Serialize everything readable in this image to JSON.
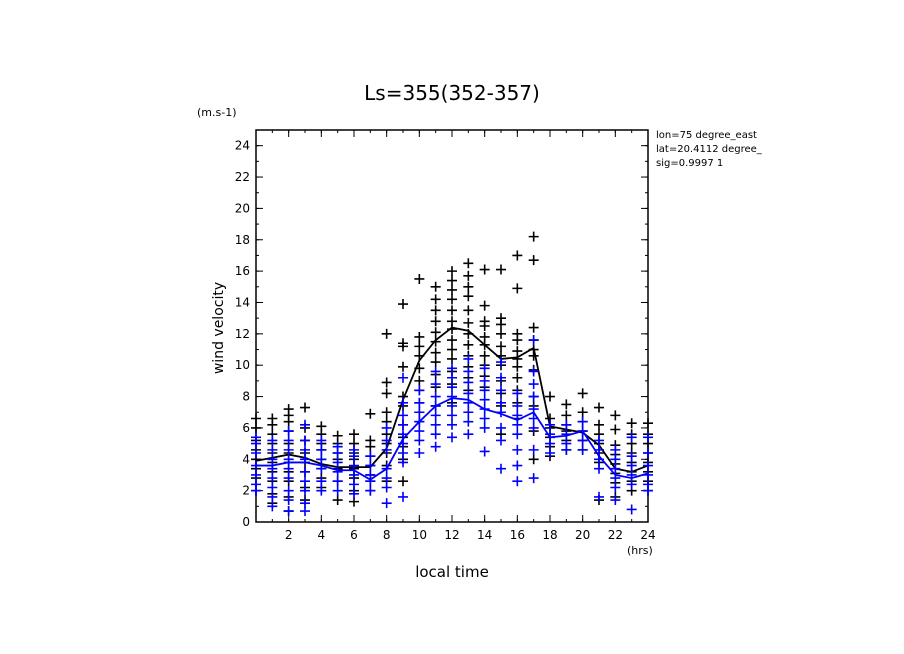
{
  "chart_data": {
    "type": "scatter",
    "title": "Ls=355(352-357)",
    "xlabel": "local time",
    "ylabel": "wind velocity",
    "x_unit": "(hrs)",
    "y_unit": "(m.s-1)",
    "xlim": [
      0,
      24
    ],
    "ylim": [
      0,
      25
    ],
    "x_ticks": [
      "2",
      "4",
      "6",
      "8",
      "10",
      "12",
      "14",
      "16",
      "18",
      "20",
      "22",
      "24"
    ],
    "y_ticks": [
      "0",
      "2",
      "4",
      "6",
      "8",
      "10",
      "12",
      "14",
      "16",
      "18",
      "20",
      "22",
      "24"
    ],
    "grid": false,
    "annotations": [
      "lon=75 degree_east",
      "lat=20.4112 degree_",
      "sig=0.9997 1"
    ],
    "colors": {
      "series_a": "#000000",
      "series_b": "#0000ff"
    },
    "series": [
      {
        "color": "#000000",
        "mean_x": [
          0,
          1,
          2,
          3,
          4,
          5,
          6,
          7,
          8,
          9,
          10,
          11,
          12,
          13,
          14,
          15,
          16,
          17,
          18,
          19,
          20,
          21,
          22,
          23,
          24
        ],
        "mean": [
          3.9,
          4.1,
          4.3,
          4.1,
          3.7,
          3.5,
          3.5,
          3.5,
          4.7,
          7.8,
          10.3,
          11.6,
          12.4,
          12.2,
          11.3,
          10.4,
          10.5,
          11.1,
          6.1,
          5.9,
          5.7,
          4.9,
          3.4,
          3.2,
          3.6
        ],
        "points": [
          [
            0,
            [
              6.6,
              6.0,
              5.2,
              4.6,
              4.0,
              3.4,
              2.8,
              2.0
            ]
          ],
          [
            1,
            [
              6.6,
              6.2,
              5.6,
              5.0,
              4.4,
              3.8,
              3.2,
              2.6,
              1.8,
              1.2
            ]
          ],
          [
            2,
            [
              7.2,
              6.8,
              6.4,
              5.8,
              5.0,
              4.4,
              3.8,
              3.2,
              2.6,
              1.6,
              0.7
            ]
          ],
          [
            3,
            [
              7.3,
              6.0,
              5.2,
              4.4,
              3.8,
              3.2,
              2.2,
              1.4
            ]
          ],
          [
            4,
            [
              6.1,
              5.6,
              5.0,
              4.6,
              4.0,
              3.4,
              2.8,
              2.2
            ]
          ],
          [
            5,
            [
              5.5,
              5.0,
              4.4,
              4.0,
              3.4,
              2.6,
              1.4
            ]
          ],
          [
            6,
            [
              5.6,
              5.0,
              4.4,
              4.0,
              3.4,
              2.8,
              2.0,
              1.3
            ]
          ],
          [
            7,
            [
              6.9,
              5.2,
              4.8,
              4.2,
              3.6,
              3.0,
              2.6,
              2.0
            ]
          ],
          [
            8,
            [
              12.0,
              8.9,
              8.2,
              7.0,
              6.4,
              5.6,
              5.0,
              4.4,
              3.6,
              2.6
            ]
          ],
          [
            9,
            [
              13.9,
              11.4,
              11.2,
              9.9,
              8.0,
              7.4,
              6.2,
              5.4,
              4.8,
              4.0,
              2.6
            ]
          ],
          [
            10,
            [
              15.5,
              11.8,
              11.2,
              10.6,
              9.8,
              9.0,
              8.4,
              7.6,
              7.0,
              6.4
            ]
          ],
          [
            11,
            [
              15.0,
              14.2,
              13.5,
              12.8,
              12.1,
              11.5,
              10.8,
              10.2,
              9.4,
              8.6,
              7.4
            ]
          ],
          [
            12,
            [
              16.0,
              15.4,
              14.8,
              14.2,
              13.5,
              12.8,
              12.3,
              11.6,
              11.0,
              10.4,
              9.6,
              8.8,
              7.6
            ]
          ],
          [
            13,
            [
              16.5,
              15.7,
              15.0,
              14.4,
              13.5,
              12.7,
              12.0,
              11.3,
              10.6,
              9.9,
              9.2,
              8.4
            ]
          ],
          [
            14,
            [
              16.1,
              13.8,
              12.8,
              12.5,
              11.8,
              11.3,
              10.6,
              10.0,
              9.3,
              8.6
            ]
          ],
          [
            15,
            [
              16.1,
              13.0,
              12.6,
              12.0,
              11.2,
              10.6,
              10.0,
              9.0,
              8.2,
              7.4,
              5.6
            ]
          ],
          [
            16,
            [
              17.0,
              14.9,
              12.0,
              11.6,
              10.9,
              10.4,
              9.9,
              9.2,
              8.4,
              7.6,
              6.6
            ]
          ],
          [
            17,
            [
              18.2,
              16.7,
              12.4,
              11.6,
              11.0,
              10.6,
              9.7,
              8.0,
              7.4,
              5.8,
              4.0
            ]
          ],
          [
            18,
            [
              8.0,
              6.6,
              6.0,
              5.4,
              4.8,
              4.2
            ]
          ],
          [
            19,
            [
              7.5,
              6.8,
              6.2,
              5.8,
              5.2,
              4.6
            ]
          ],
          [
            20,
            [
              8.2,
              7.0,
              6.4,
              5.8,
              5.2,
              4.6
            ]
          ],
          [
            21,
            [
              7.3,
              6.2,
              5.6,
              5.0,
              4.4,
              3.8,
              1.4
            ]
          ],
          [
            22,
            [
              6.8,
              5.9,
              4.9,
              4.3,
              3.7,
              3.1,
              2.5,
              1.6
            ]
          ],
          [
            23,
            [
              6.3,
              5.6,
              5.0,
              4.4,
              3.8,
              3.2,
              2.6,
              2.0
            ]
          ],
          [
            24,
            [
              6.3,
              5.6,
              5.0,
              4.4,
              3.8,
              3.2,
              2.6,
              2.0
            ]
          ]
        ]
      },
      {
        "color": "#0000ff",
        "mean_x": [
          0,
          1,
          2,
          3,
          4,
          5,
          6,
          7,
          8,
          9,
          10,
          11,
          12,
          13,
          14,
          15,
          16,
          17,
          18,
          19,
          20,
          21,
          22,
          23,
          24
        ],
        "mean": [
          3.6,
          3.6,
          3.8,
          3.8,
          3.6,
          3.3,
          3.3,
          2.7,
          3.4,
          5.3,
          6.4,
          7.4,
          7.9,
          7.8,
          7.2,
          6.9,
          6.5,
          7.0,
          5.4,
          5.5,
          5.8,
          4.2,
          3.0,
          2.8,
          3.1
        ],
        "points": [
          [
            0,
            [
              5.4,
              5.0,
              4.4,
              3.6,
              3.0,
              2.4,
              2.0
            ]
          ],
          [
            1,
            [
              5.2,
              4.6,
              4.0,
              3.4,
              2.8,
              2.2,
              1.6,
              1.0
            ]
          ],
          [
            2,
            [
              5.8,
              5.2,
              4.6,
              4.0,
              3.4,
              2.8,
              2.0,
              1.4,
              0.7
            ]
          ],
          [
            3,
            [
              6.2,
              5.2,
              4.6,
              4.0,
              3.2,
              2.6,
              2.0,
              1.2,
              0.7
            ]
          ],
          [
            4,
            [
              5.2,
              4.6,
              4.0,
              3.4,
              2.6,
              2.0
            ]
          ],
          [
            5,
            [
              4.8,
              4.4,
              3.8,
              3.2,
              2.6,
              2.0
            ]
          ],
          [
            6,
            [
              4.6,
              4.2,
              3.6,
              3.0,
              2.4,
              1.8
            ]
          ],
          [
            7,
            [
              4.2,
              3.6,
              3.0,
              2.6,
              2.0
            ]
          ],
          [
            8,
            [
              6.0,
              5.2,
              4.6,
              3.4,
              2.8,
              2.2,
              1.2
            ]
          ],
          [
            9,
            [
              9.2,
              7.6,
              6.8,
              6.2,
              5.6,
              5.0,
              4.4,
              3.8,
              1.6
            ]
          ],
          [
            10,
            [
              8.4,
              7.6,
              7.0,
              6.4,
              5.8,
              5.2,
              4.4
            ]
          ],
          [
            11,
            [
              9.6,
              8.8,
              8.0,
              7.4,
              6.8,
              6.2,
              5.6,
              4.8
            ]
          ],
          [
            12,
            [
              9.8,
              9.2,
              8.6,
              8.0,
              7.4,
              6.8,
              6.2,
              5.4
            ]
          ],
          [
            13,
            [
              10.4,
              9.6,
              8.9,
              8.2,
              7.6,
              7.0,
              6.4,
              5.6
            ]
          ],
          [
            14,
            [
              9.8,
              9.0,
              8.4,
              7.8,
              7.2,
              6.6,
              6.0,
              4.5
            ]
          ],
          [
            15,
            [
              10.2,
              9.2,
              8.4,
              7.6,
              7.0,
              6.0,
              5.2,
              3.4
            ]
          ],
          [
            16,
            [
              8.2,
              7.4,
              6.8,
              6.2,
              5.6,
              4.6,
              3.6,
              2.6
            ]
          ],
          [
            17,
            [
              11.6,
              9.6,
              8.8,
              8.0,
              7.2,
              6.6,
              6.0,
              4.6,
              2.8
            ]
          ],
          [
            18,
            [
              6.2,
              5.6,
              5.0,
              4.4
            ]
          ],
          [
            19,
            [
              6.2,
              5.6,
              5.0,
              4.6
            ]
          ],
          [
            20,
            [
              6.4,
              5.8,
              5.2,
              4.6
            ]
          ],
          [
            21,
            [
              5.2,
              4.6,
              4.0,
              3.4,
              1.6
            ]
          ],
          [
            22,
            [
              4.6,
              4.0,
              3.4,
              2.8,
              2.2,
              1.4
            ]
          ],
          [
            23,
            [
              5.4,
              4.2,
              3.6,
              3.0,
              2.4,
              0.8
            ]
          ],
          [
            24,
            [
              5.4,
              4.4,
              3.6,
              3.0,
              2.4,
              2.0
            ]
          ]
        ]
      }
    ]
  }
}
